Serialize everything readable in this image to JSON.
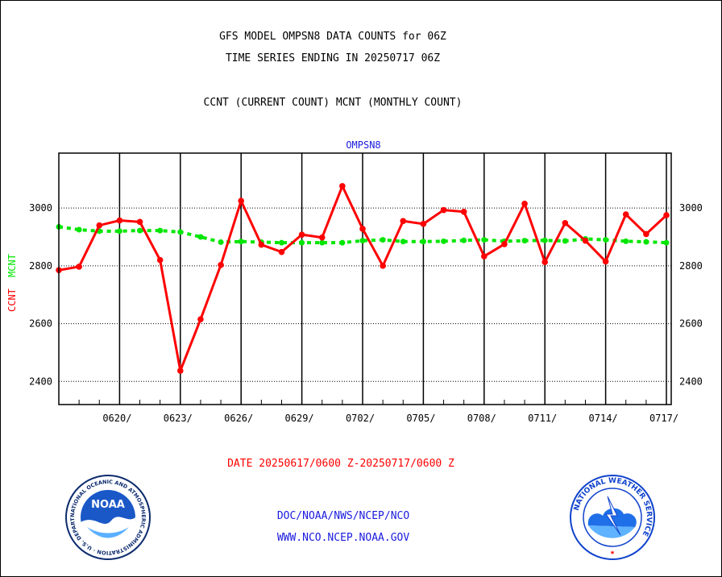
{
  "titles": {
    "line1": "GFS MODEL OMPSN8 DATA COUNTS for 06Z",
    "line2": "TIME SERIES ENDING IN 20250717 06Z",
    "line3": "CCNT (CURRENT COUNT) MCNT (MONTHLY COUNT)"
  },
  "date_range": "DATE 20250617/0600 Z-20250717/0600 Z",
  "footer": {
    "line1": "DOC/NOAA/NWS/NCEP/NCO",
    "line2": "WWW.NCO.NCEP.NOAA.GOV"
  },
  "logos": {
    "noaa_text": "NOAA",
    "noaa_ring": "NATIONAL OCEANIC AND ATMOSPHERIC ADMINISTRATION · U.S. DEPARTMENT OF COMMERCE ·",
    "nws_ring": "NATIONAL WEATHER SERVICE"
  },
  "chart_data": {
    "type": "line",
    "title": "OMPSN8",
    "ylabel_ccnt": "CCNT",
    "ylabel_mcnt": "MCNT",
    "ylim": [
      2320,
      3190
    ],
    "yticks": [
      2400,
      2600,
      2800,
      3000
    ],
    "x_start_day": 0,
    "x_end_day": 30,
    "x_ticks": [
      {
        "day": 3,
        "label": "0620/"
      },
      {
        "day": 6,
        "label": "0623/"
      },
      {
        "day": 9,
        "label": "0626/"
      },
      {
        "day": 12,
        "label": "0629/"
      },
      {
        "day": 15,
        "label": "0702/"
      },
      {
        "day": 18,
        "label": "0705/"
      },
      {
        "day": 21,
        "label": "0708/"
      },
      {
        "day": 24,
        "label": "0711/"
      },
      {
        "day": 27,
        "label": "0714/"
      },
      {
        "day": 30,
        "label": "0717/"
      }
    ],
    "grid": true,
    "colors": {
      "ccnt": "#ff0000",
      "mcnt": "#00e600",
      "title": "#1a1adf",
      "axis": "#000000"
    },
    "series": [
      {
        "name": "CCNT",
        "x": [
          0,
          1,
          2,
          3,
          4,
          5,
          6,
          7,
          8,
          9,
          10,
          11,
          12,
          13,
          14,
          15,
          16,
          17,
          18,
          19,
          20,
          21,
          22,
          23,
          24,
          25,
          26,
          27,
          28,
          29,
          30
        ],
        "values": [
          2785,
          2797,
          2940,
          2957,
          2952,
          2820,
          2437,
          2615,
          2803,
          3025,
          2873,
          2848,
          2908,
          2898,
          3076,
          2928,
          2800,
          2955,
          2945,
          2993,
          2987,
          2833,
          2875,
          3015,
          2813,
          2948,
          2887,
          2815,
          2978,
          2910,
          2975
        ]
      },
      {
        "name": "MCNT",
        "x": [
          0,
          1,
          2,
          3,
          4,
          5,
          6,
          7,
          8,
          9,
          10,
          11,
          12,
          13,
          14,
          15,
          16,
          17,
          18,
          19,
          20,
          21,
          22,
          23,
          24,
          25,
          26,
          27,
          28,
          29,
          30
        ],
        "values": [
          2935,
          2925,
          2920,
          2920,
          2922,
          2922,
          2917,
          2900,
          2882,
          2884,
          2882,
          2880,
          2880,
          2880,
          2880,
          2887,
          2890,
          2884,
          2884,
          2885,
          2888,
          2890,
          2885,
          2887,
          2888,
          2886,
          2893,
          2890,
          2885,
          2883,
          2880
        ]
      }
    ]
  }
}
